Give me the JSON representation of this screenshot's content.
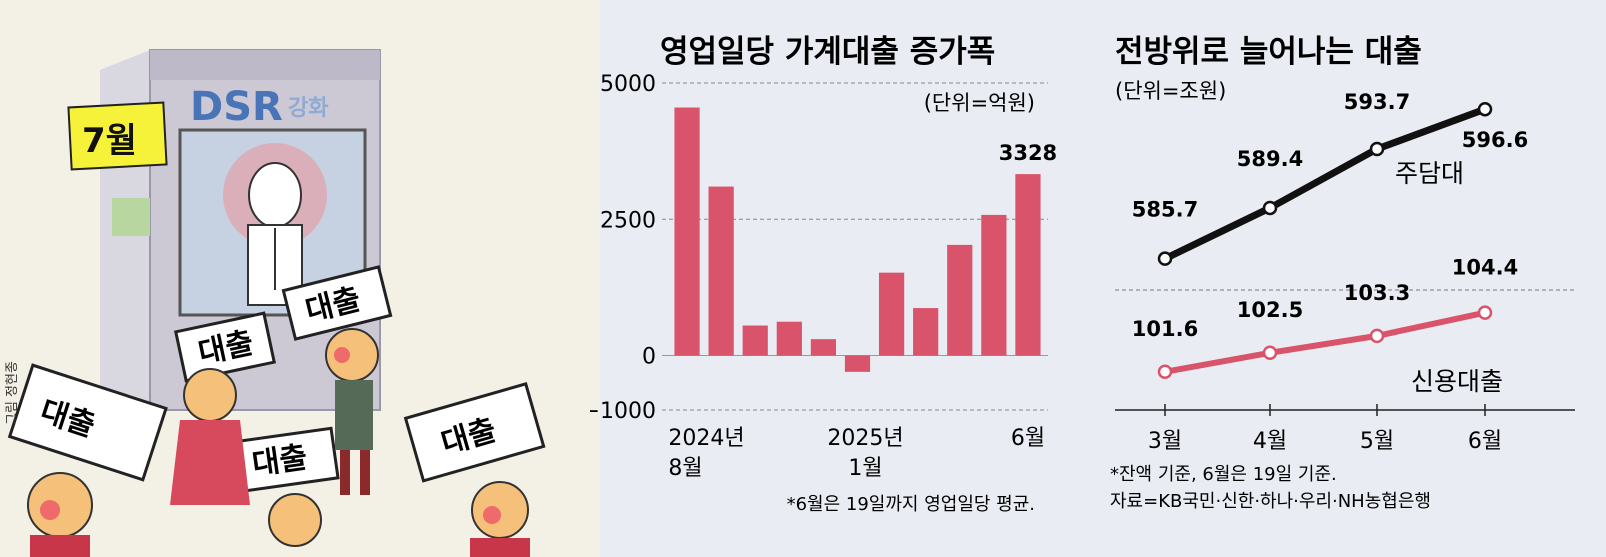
{
  "illustration": {
    "month_tag": "7월",
    "dsr_text": "DSR",
    "dsr_suffix": "강화",
    "signs": [
      "대출",
      "대출",
      "대출",
      "대출",
      "대출"
    ],
    "credit": "그림 정현종"
  },
  "colors": {
    "bar": "#d9546a",
    "line_black": "#111111",
    "line_red": "#d9546a",
    "illustration_bg": "#f3f0e6"
  },
  "chart_data": [
    {
      "type": "bar",
      "title": "영업일당 가계대출 증가폭",
      "unit": "(단위=억원)",
      "ylim": [
        -1000,
        5000
      ],
      "y_ticks": [
        5000,
        2500,
        0,
        -1000
      ],
      "y_tick_labels": [
        "5000",
        "2500",
        "0",
        "−1000"
      ],
      "categories": [
        "2024-08",
        "2024-09",
        "2024-10",
        "2024-11",
        "2024-12",
        "2025-01",
        "2025-02",
        "2025-03",
        "2025-04",
        "2025-05",
        "2025-06"
      ],
      "values": [
        4550,
        3100,
        550,
        620,
        300,
        -300,
        1520,
        870,
        2030,
        2580,
        3328
      ],
      "x_labels": [
        {
          "index": 0,
          "lines": [
            "2024년",
            "8월"
          ]
        },
        {
          "index": 5,
          "lines": [
            "2025년",
            "1월"
          ]
        },
        {
          "index": 10,
          "lines": [
            "6월"
          ]
        }
      ],
      "data_labels": [
        {
          "index": 10,
          "text": "3328"
        }
      ],
      "grid": true,
      "note": "*6월은 19일까지 영업일당 평균."
    },
    {
      "type": "line",
      "title": "전방위로 늘어나는 대출",
      "unit": "(단위=조원)",
      "categories": [
        "3월",
        "4월",
        "5월",
        "6월"
      ],
      "series": [
        {
          "name": "주담대",
          "values": [
            585.7,
            589.4,
            593.7,
            596.6
          ],
          "labels": [
            "585.7",
            "589.4",
            "593.7",
            "596.6"
          ]
        },
        {
          "name": "신용대출",
          "values": [
            101.6,
            102.5,
            103.3,
            104.4
          ],
          "labels": [
            "101.6",
            "102.5",
            "103.3",
            "104.4"
          ]
        }
      ],
      "notes": [
        "*잔액 기준, 6월은 19일 기준.",
        "자료=KB국민·신한·하나·우리·NH농협은행"
      ]
    }
  ]
}
